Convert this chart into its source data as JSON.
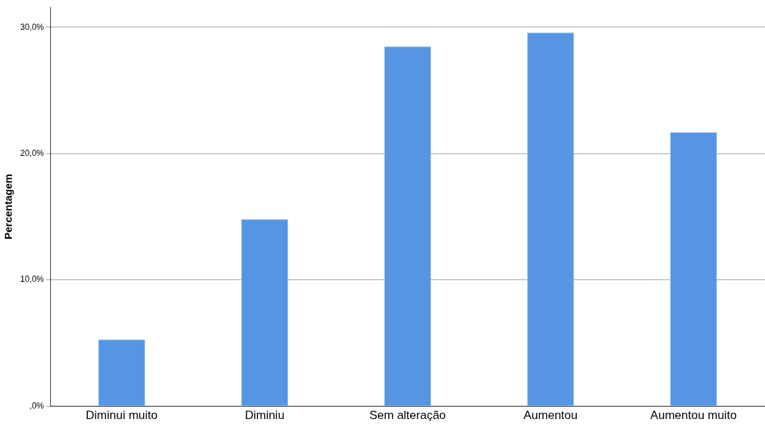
{
  "chart_data": {
    "type": "bar",
    "ylabel": "Percentagem",
    "categories": [
      "Diminui muito",
      "Diminiu",
      "Sem alteração",
      "Aumentou",
      "Aumentou muito"
    ],
    "values": [
      5.3,
      14.8,
      28.5,
      29.6,
      21.7
    ],
    "color": "#5595e3",
    "ylim": [
      0,
      31.6
    ],
    "yticks": [
      {
        "value": 0,
        "label": ",0%"
      },
      {
        "value": 10,
        "label": "10,0%"
      },
      {
        "value": 20,
        "label": "20,0%"
      },
      {
        "value": 30,
        "label": "30,0%"
      }
    ],
    "grid": "y"
  }
}
